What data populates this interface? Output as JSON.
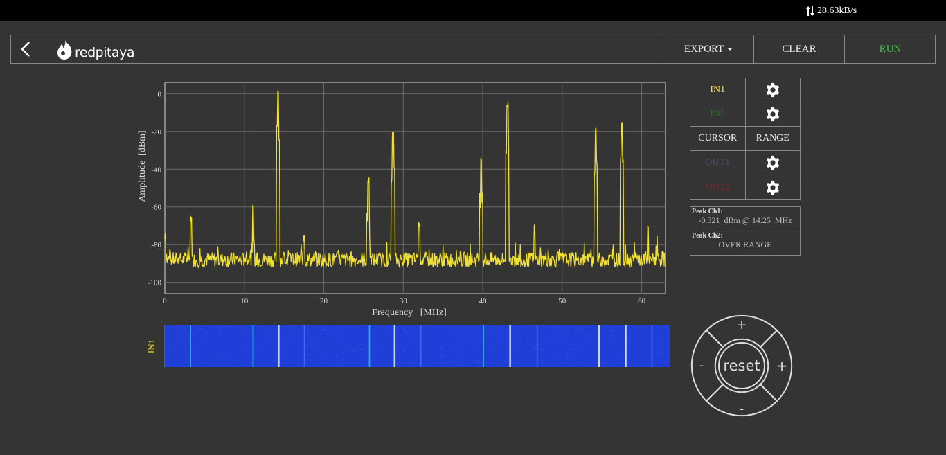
{
  "status_bar": {
    "net_rate": "28.63kB/s",
    "icon": "updown-arrows-icon"
  },
  "header": {
    "back_icon": "chevron-left-icon",
    "logo_icon": "flame-icon",
    "logo_text": "redpitaya",
    "export_label": "EXPORT",
    "clear_label": "CLEAR",
    "run_label": "RUN",
    "run_color": "#3ec43e"
  },
  "chart_data": {
    "type": "line",
    "xlabel": "Frequency   [MHz]",
    "ylabel": "Amplitude  [dBm]",
    "xlim": [
      0,
      63
    ],
    "ylim": [
      -106,
      6
    ],
    "xticks": [
      0,
      10,
      20,
      30,
      40,
      50,
      60
    ],
    "yticks": [
      0,
      -20,
      -40,
      -60,
      -80,
      -100
    ],
    "grid": true,
    "series": [
      {
        "color": "#f0e030",
        "noise_floor_dbm": -88,
        "peaks": [
          {
            "x": 0.0,
            "y": -77
          },
          {
            "x": 3.3,
            "y": -68
          },
          {
            "x": 11.1,
            "y": -61
          },
          {
            "x": 14.25,
            "y": -0.321
          },
          {
            "x": 17.5,
            "y": -78
          },
          {
            "x": 25.6,
            "y": -48
          },
          {
            "x": 28.7,
            "y": -23
          },
          {
            "x": 32.0,
            "y": -71
          },
          {
            "x": 39.8,
            "y": -36
          },
          {
            "x": 43.1,
            "y": -8
          },
          {
            "x": 46.5,
            "y": -71
          },
          {
            "x": 54.2,
            "y": -20
          },
          {
            "x": 57.5,
            "y": -17
          },
          {
            "x": 60.8,
            "y": -72
          }
        ]
      }
    ],
    "waterfall_label": "IN1",
    "waterfall_color": "#1f3fd8"
  },
  "panel": {
    "in1_label": "IN1",
    "in1_color": "#f0e030",
    "in2_label": "IN2",
    "in2_color": "#2c6a35",
    "cursor_label": "CURSOR",
    "range_label": "RANGE",
    "out1_label": "OUT1",
    "out1_color": "#4a5266",
    "out2_label": "OUT2",
    "out2_color": "#7a2a2a",
    "gear_icon": "gear-icon"
  },
  "peak": {
    "ch1_label": "Peak  Ch1:",
    "ch1_value": "-0.321  dBm @ 14.25  MHz",
    "ch2_label": "Peak  Ch2:",
    "ch2_value": "OVER RANGE"
  },
  "dpad": {
    "top": "+",
    "bottom": "-",
    "left": "-",
    "right": "+",
    "center": "reset"
  }
}
